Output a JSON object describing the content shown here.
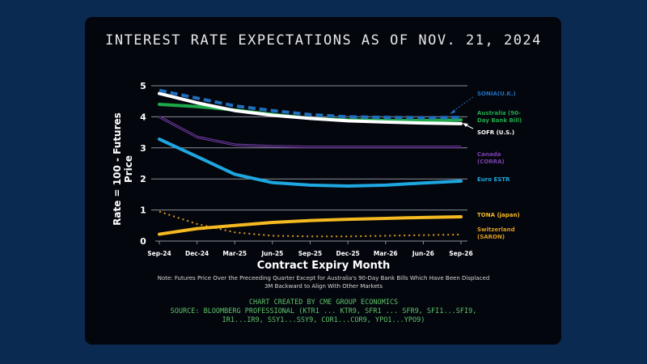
{
  "chart_data": {
    "type": "line",
    "title": "INTEREST RATE EXPECTATIONS AS OF NOV. 21, 2024",
    "xlabel": "Contract Expiry Month",
    "ylabel": "Rate = 100 - Futures Price",
    "ylim": [
      0,
      5
    ],
    "yticks": [
      0,
      1,
      2,
      3,
      4,
      5
    ],
    "grid": true,
    "categories": [
      "Sep-24",
      "Dec-24",
      "Mar-25",
      "Jun-25",
      "Sep-25",
      "Dec-25",
      "Mar-26",
      "Jun-26",
      "Sep-26"
    ],
    "series": [
      {
        "name": "SONIA(U.K.)",
        "label_lines": [
          "SONIA(U.K.)"
        ],
        "color": "#1f6fbf",
        "style": "dashed",
        "values": [
          4.85,
          4.6,
          4.35,
          4.2,
          4.07,
          4.0,
          3.98,
          3.97,
          3.98
        ]
      },
      {
        "name": "Australia (90-Day Bank Bill)",
        "label_lines": [
          "Australia (90-",
          "Day Bank Bill)"
        ],
        "color": "#1fa84a",
        "style": "solid",
        "values": [
          4.4,
          4.33,
          4.22,
          4.08,
          3.95,
          3.9,
          3.88,
          3.88,
          3.9
        ]
      },
      {
        "name": "SOFR (U.S.)",
        "label_lines": [
          "SOFR (U.S.)"
        ],
        "color": "#ffffff",
        "style": "solid",
        "values": [
          4.75,
          4.45,
          4.2,
          4.05,
          3.95,
          3.87,
          3.83,
          3.8,
          3.78
        ]
      },
      {
        "name": "Canada (CORRA)",
        "label_lines": [
          "Canada",
          "(CORRA)"
        ],
        "color": "#7b3fb0",
        "style": "double",
        "values": [
          4.0,
          3.35,
          3.1,
          3.05,
          3.03,
          3.03,
          3.03,
          3.03,
          3.03
        ]
      },
      {
        "name": "Euro ESTR",
        "label_lines": [
          "Euro ESTR"
        ],
        "color": "#1ea7e0",
        "style": "solid",
        "values": [
          3.28,
          2.72,
          2.15,
          1.88,
          1.8,
          1.77,
          1.8,
          1.87,
          1.93
        ]
      },
      {
        "name": "TONA (japan)",
        "label_lines": [
          "TONA (japan)"
        ],
        "color": "#f5b921",
        "style": "solid",
        "values": [
          0.22,
          0.4,
          0.5,
          0.6,
          0.66,
          0.7,
          0.73,
          0.76,
          0.78
        ]
      },
      {
        "name": "Switzerland (SARON)",
        "label_lines": [
          "Switzerland",
          "(SARON)"
        ],
        "color": "#d99a1e",
        "style": "dotted",
        "values": [
          0.95,
          0.55,
          0.28,
          0.17,
          0.15,
          0.15,
          0.17,
          0.19,
          0.21
        ]
      }
    ],
    "legend": "right (inline labels)",
    "note": [
      "Note: Futures Price Over the Preceeding Quarter Except for Australia's 90-Day Bank Bills Which Have Been Displaced",
      "3M Backward to Align With Other Markets"
    ],
    "credits": [
      "CHART CREATED BY CME GROUP ECONOMICS",
      "SOURCE: BLOOMBERG PROFESSIONAL (KTR1 ... KTR9, SFR1 ... SFR9, SFI1...SFI9,",
      "IR1...IR9, SSY1...SSY9, COR1...COR9, YPO1...YPO9)"
    ]
  }
}
